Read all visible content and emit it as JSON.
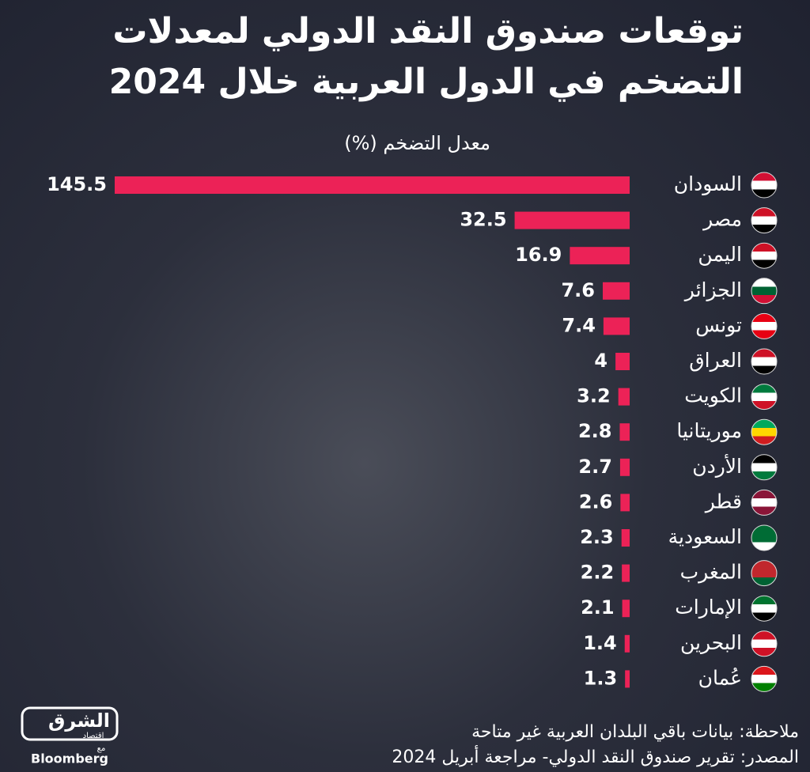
{
  "chart_data": {
    "type": "bar",
    "orientation": "horizontal",
    "title": "توقعات صندوق النقد الدولي لمعدلات التضخم في الدول العربية خلال 2024",
    "subtitle": "معدل التضخم (%)",
    "categories": [
      "السودان",
      "مصر",
      "اليمن",
      "الجزائر",
      "تونس",
      "العراق",
      "الكويت",
      "موريتانيا",
      "الأردن",
      "قطر",
      "السعودية",
      "المغرب",
      "الإمارات",
      "البحرين",
      "عُمان"
    ],
    "values": [
      145.5,
      32.5,
      16.9,
      7.6,
      7.4,
      4,
      3.2,
      2.8,
      2.7,
      2.6,
      2.3,
      2.2,
      2.1,
      1.4,
      1.3
    ],
    "color": "#ec2257",
    "notes": [
      "ملاحظة: بيانات باقي البلدان العربية غير متاحة",
      "المصدر: تقرير صندوق النقد الدولي- مراجعة أبريل 2024"
    ],
    "logo": {
      "name": "الشرق",
      "tagline": "اقتصاد",
      "with": "مع",
      "partner": "Bloomberg"
    }
  }
}
